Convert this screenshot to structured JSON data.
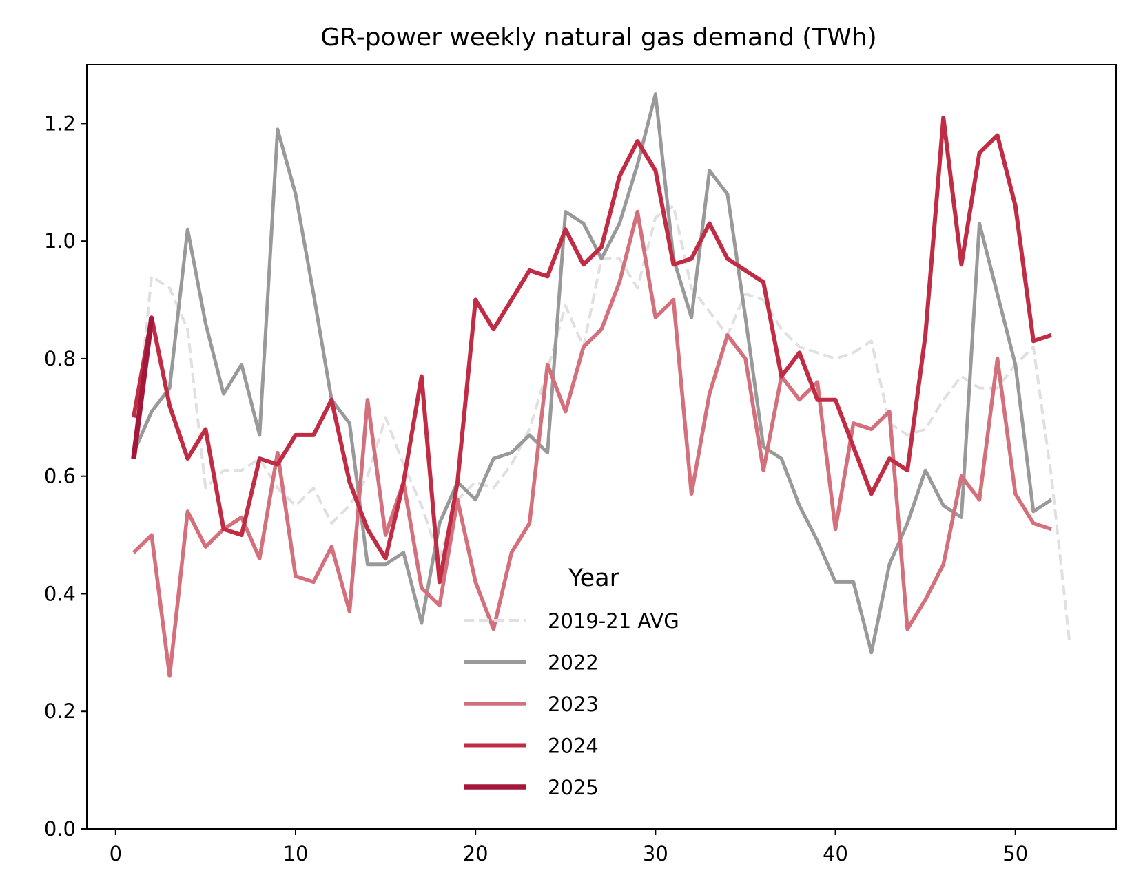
{
  "chart_data": {
    "type": "line",
    "title": "GR-power weekly natural gas demand (TWh)",
    "xlabel": "",
    "ylabel": "",
    "xlim": [
      -1.6,
      55.6
    ],
    "ylim": [
      0,
      1.3
    ],
    "x_ticks": [
      0,
      10,
      20,
      30,
      40,
      50
    ],
    "y_ticks": [
      0.0,
      0.2,
      0.4,
      0.6,
      0.8,
      1.0,
      1.2
    ],
    "x_tick_labels": [
      "0",
      "10",
      "20",
      "30",
      "40",
      "50"
    ],
    "y_tick_labels": [
      "0.0",
      "0.2",
      "0.4",
      "0.6",
      "0.8",
      "1.0",
      "1.2"
    ],
    "grid": false,
    "legend": {
      "title": "Year",
      "placement": "lower-center"
    },
    "series": [
      {
        "name": "2019-21 AVG",
        "color": "#e0e0e0",
        "dashed": true,
        "x": [
          1,
          2,
          3,
          4,
          5,
          6,
          7,
          8,
          9,
          10,
          11,
          12,
          13,
          14,
          15,
          16,
          17,
          18,
          19,
          20,
          21,
          22,
          23,
          24,
          25,
          26,
          27,
          28,
          29,
          30,
          31,
          32,
          33,
          34,
          35,
          36,
          37,
          38,
          39,
          40,
          41,
          42,
          43,
          44,
          45,
          46,
          47,
          48,
          49,
          50,
          51,
          52,
          53
        ],
        "values": [
          0.64,
          0.94,
          0.92,
          0.85,
          0.58,
          0.61,
          0.61,
          0.63,
          0.58,
          0.55,
          0.58,
          0.52,
          0.55,
          0.6,
          0.7,
          0.62,
          0.55,
          0.46,
          0.56,
          0.59,
          0.58,
          0.62,
          0.68,
          0.78,
          0.89,
          0.82,
          0.97,
          0.97,
          0.92,
          1.04,
          1.06,
          0.92,
          0.88,
          0.84,
          0.91,
          0.9,
          0.85,
          0.82,
          0.81,
          0.8,
          0.81,
          0.83,
          0.69,
          0.67,
          0.68,
          0.73,
          0.77,
          0.75,
          0.75,
          0.79,
          0.82,
          0.6,
          0.32
        ]
      },
      {
        "name": "2022",
        "color": "#999999",
        "dashed": false,
        "x": [
          1,
          2,
          3,
          4,
          5,
          6,
          7,
          8,
          9,
          10,
          11,
          12,
          13,
          14,
          15,
          16,
          17,
          18,
          19,
          20,
          21,
          22,
          23,
          24,
          25,
          26,
          27,
          28,
          29,
          30,
          31,
          32,
          33,
          34,
          35,
          36,
          37,
          38,
          39,
          40,
          41,
          42,
          43,
          44,
          45,
          46,
          47,
          48,
          49,
          50,
          51,
          52
        ],
        "values": [
          0.64,
          0.71,
          0.75,
          1.02,
          0.86,
          0.74,
          0.79,
          0.67,
          1.19,
          1.08,
          0.91,
          0.73,
          0.69,
          0.45,
          0.45,
          0.47,
          0.35,
          0.52,
          0.59,
          0.56,
          0.63,
          0.64,
          0.67,
          0.64,
          1.05,
          1.03,
          0.97,
          1.03,
          1.13,
          1.25,
          0.97,
          0.87,
          1.12,
          1.08,
          0.87,
          0.65,
          0.63,
          0.55,
          0.49,
          0.42,
          0.42,
          0.3,
          0.45,
          0.52,
          0.61,
          0.55,
          0.53,
          1.03,
          0.91,
          0.79,
          0.54,
          0.56
        ]
      },
      {
        "name": "2023",
        "color": "#d4707c",
        "dashed": false,
        "x": [
          1,
          2,
          3,
          4,
          5,
          6,
          7,
          8,
          9,
          10,
          11,
          12,
          13,
          14,
          15,
          16,
          17,
          18,
          19,
          20,
          21,
          22,
          23,
          24,
          25,
          26,
          27,
          28,
          29,
          30,
          31,
          32,
          33,
          34,
          35,
          36,
          37,
          38,
          39,
          40,
          41,
          42,
          43,
          44,
          45,
          46,
          47,
          48,
          49,
          50,
          51,
          52
        ],
        "values": [
          0.47,
          0.5,
          0.26,
          0.54,
          0.48,
          0.51,
          0.53,
          0.46,
          0.64,
          0.43,
          0.42,
          0.48,
          0.37,
          0.73,
          0.5,
          0.59,
          0.41,
          0.38,
          0.56,
          0.42,
          0.34,
          0.47,
          0.52,
          0.79,
          0.71,
          0.82,
          0.85,
          0.93,
          1.05,
          0.87,
          0.9,
          0.57,
          0.74,
          0.84,
          0.8,
          0.61,
          0.77,
          0.73,
          0.76,
          0.51,
          0.69,
          0.68,
          0.71,
          0.34,
          0.39,
          0.45,
          0.6,
          0.56,
          0.8,
          0.57,
          0.52,
          0.51
        ]
      },
      {
        "name": "2024",
        "color": "#c12c45",
        "dashed": false,
        "x": [
          1,
          2,
          3,
          4,
          5,
          6,
          7,
          8,
          9,
          10,
          11,
          12,
          13,
          14,
          15,
          16,
          17,
          18,
          19,
          20,
          21,
          22,
          23,
          24,
          25,
          26,
          27,
          28,
          29,
          30,
          31,
          32,
          33,
          34,
          35,
          36,
          37,
          38,
          39,
          40,
          41,
          42,
          43,
          44,
          45,
          46,
          47,
          48,
          49,
          50,
          51,
          52
        ],
        "values": [
          0.7,
          0.87,
          0.72,
          0.63,
          0.68,
          0.51,
          0.5,
          0.63,
          0.62,
          0.67,
          0.67,
          0.73,
          0.59,
          0.51,
          0.46,
          0.59,
          0.77,
          0.42,
          0.59,
          0.9,
          0.85,
          0.9,
          0.95,
          0.94,
          1.02,
          0.96,
          0.99,
          1.11,
          1.17,
          1.12,
          0.96,
          0.97,
          1.03,
          0.97,
          0.95,
          0.93,
          0.77,
          0.81,
          0.73,
          0.73,
          0.65,
          0.57,
          0.63,
          0.61,
          0.84,
          1.21,
          0.96,
          1.15,
          1.18,
          1.06,
          0.83,
          0.84
        ]
      },
      {
        "name": "2025",
        "color": "#a3183a",
        "dashed": false,
        "x": [
          1,
          2
        ],
        "values": [
          0.63,
          0.87
        ]
      }
    ]
  }
}
